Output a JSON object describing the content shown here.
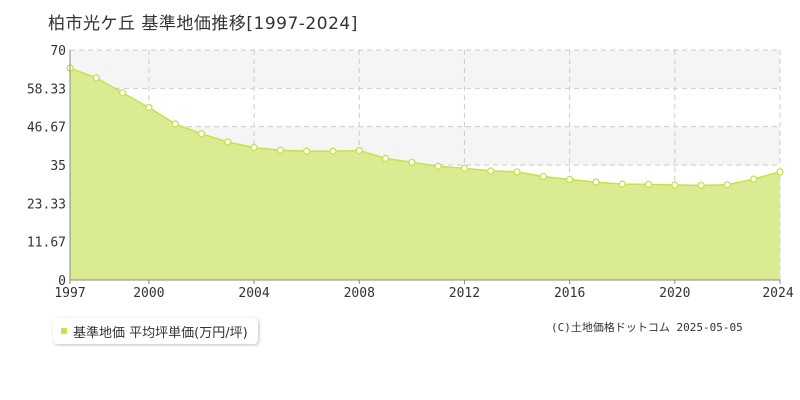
{
  "title": "柏市光ケ丘 基準地価推移[1997-2024]",
  "copyright": "(C)土地価格ドットコム 2025-05-05",
  "colors": {
    "fill": "#d9ec91",
    "line": "#c8e04a",
    "band": "#f5f5f5",
    "grid": "#cccccc",
    "axis": "#888888"
  },
  "chart_data": {
    "type": "area",
    "title": "柏市光ケ丘 基準地価推移[1997-2024]",
    "xlabel": "",
    "ylabel": "",
    "xlim": [
      1997,
      2024
    ],
    "ylim": [
      0,
      70
    ],
    "x_ticks": [
      1997,
      2000,
      2004,
      2008,
      2012,
      2016,
      2020,
      2024
    ],
    "x_tick_labels": [
      "1997",
      "2000",
      "2004",
      "2008",
      "2012",
      "2016",
      "2020",
      "2024"
    ],
    "y_ticks": [
      0,
      11.67,
      23.33,
      35,
      46.67,
      58.33,
      70
    ],
    "y_tick_labels": [
      "0",
      "11.67",
      "23.33",
      "35",
      "46.67",
      "58.33",
      "70"
    ],
    "grid": true,
    "legend_position": "bottom-left",
    "series": [
      {
        "name": "基準地価 平均坪単価(万円/坪)",
        "x": [
          1997,
          1998,
          1999,
          2000,
          2001,
          2002,
          2003,
          2004,
          2005,
          2006,
          2007,
          2008,
          2009,
          2010,
          2011,
          2012,
          2013,
          2014,
          2015,
          2016,
          2017,
          2018,
          2019,
          2020,
          2021,
          2022,
          2023,
          2024
        ],
        "values": [
          64.5,
          61.5,
          57.0,
          52.5,
          47.5,
          44.5,
          42.0,
          40.3,
          39.5,
          39.2,
          39.2,
          39.4,
          37.0,
          35.8,
          34.6,
          34.0,
          33.2,
          32.9,
          31.5,
          30.6,
          29.8,
          29.2,
          29.1,
          28.9,
          28.8,
          29.0,
          30.7,
          32.9
        ]
      }
    ]
  }
}
